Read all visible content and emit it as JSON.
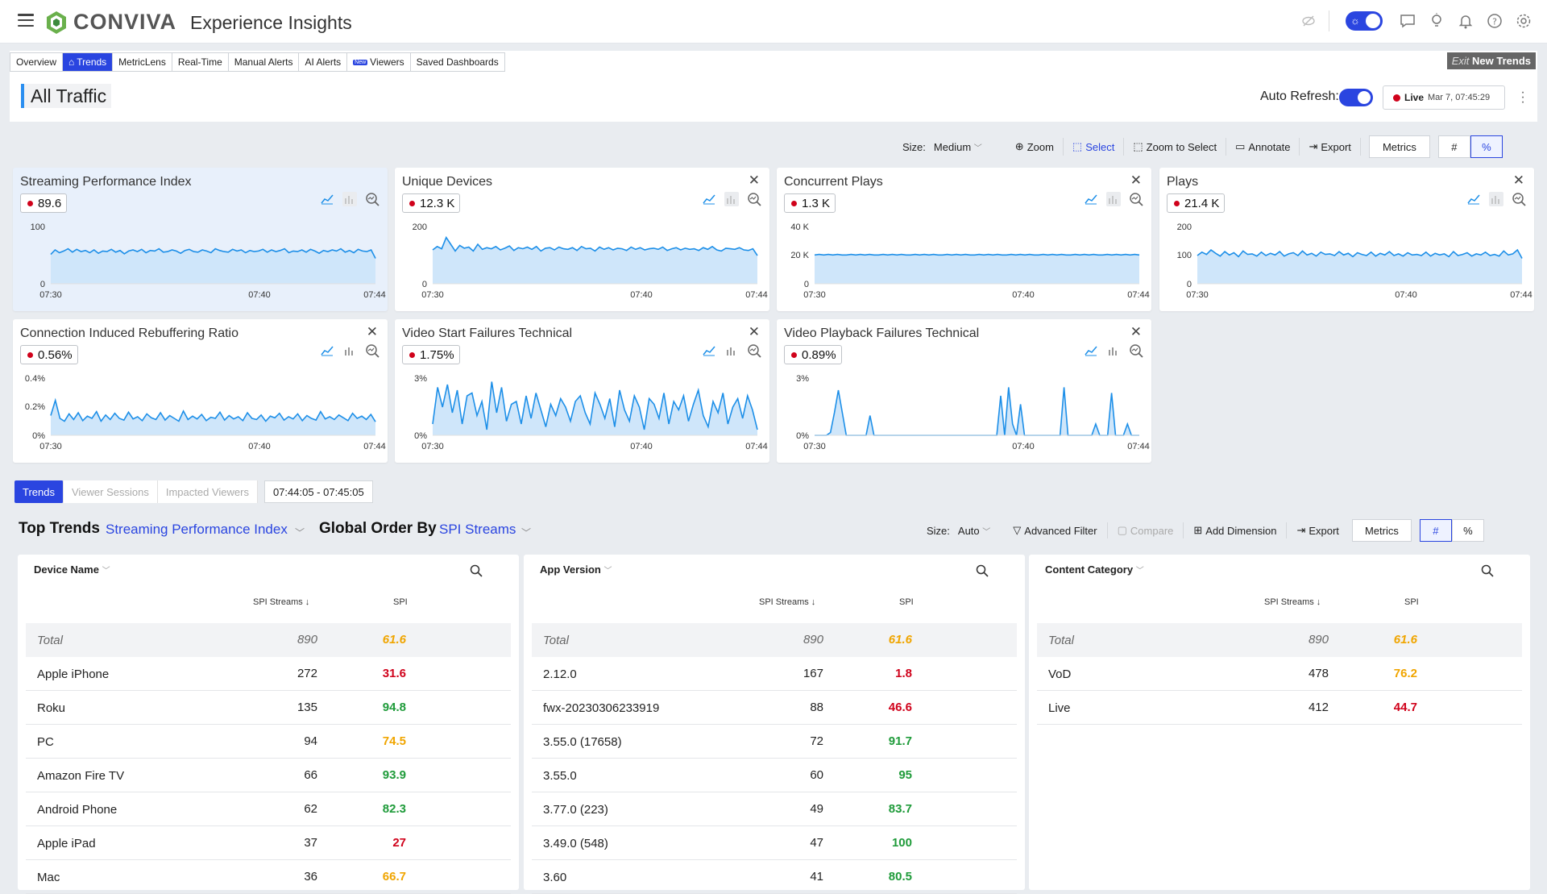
{
  "header": {
    "brand": "CONVIVA",
    "app_title": "Experience Insights"
  },
  "tabs": [
    {
      "label": "Overview",
      "active": false
    },
    {
      "label": "Trends",
      "active": true,
      "icon": "home-icon"
    },
    {
      "label": "MetricLens",
      "active": false
    },
    {
      "label": "Real-Time",
      "active": false
    },
    {
      "label": "Manual Alerts",
      "active": false
    },
    {
      "label": "AI Alerts",
      "active": false
    },
    {
      "label": "Viewers",
      "active": false,
      "badge": "New"
    },
    {
      "label": "Saved Dashboards",
      "active": false
    }
  ],
  "exit": {
    "prefix": "Exit",
    "label": "New Trends"
  },
  "page": {
    "title": "All Traffic",
    "auto_refresh_label": "Auto Refresh:",
    "live_label": "Live",
    "live_time": "Mar 7, 07:45:29"
  },
  "toolbar": {
    "size_label": "Size:",
    "size_value": "Medium",
    "zoom": "Zoom",
    "select": "Select",
    "zoom_to_select": "Zoom to Select",
    "annotate": "Annotate",
    "export": "Export",
    "metrics": "Metrics",
    "hash": "#",
    "pct": "%"
  },
  "cards": [
    {
      "title": "Streaming Performance Index",
      "value": "89.6",
      "y_top": "100",
      "y_mid": "",
      "y_bot": "0",
      "x": [
        "07:30",
        "07:40",
        "07:44"
      ],
      "closable": false,
      "highlight": true,
      "series": [
        52,
        60,
        55,
        58,
        62,
        56,
        61,
        57,
        59,
        55,
        60,
        54,
        58,
        57,
        61,
        56,
        59,
        53,
        58,
        60,
        57,
        61,
        55,
        59,
        58,
        62,
        56,
        57,
        60,
        58,
        54,
        59,
        61,
        57,
        56,
        60,
        58,
        55,
        62,
        59,
        57,
        56,
        61,
        58,
        60,
        55,
        59,
        57,
        58,
        61,
        56,
        60,
        57,
        59,
        62,
        55,
        58,
        57,
        60,
        56,
        61,
        58,
        54,
        59,
        57,
        60,
        58,
        62,
        56,
        59,
        55,
        61,
        58,
        57,
        60,
        45
      ]
    },
    {
      "title": "Unique Devices",
      "value": "12.3 K",
      "y_top": "200",
      "y_mid": "",
      "y_bot": "0",
      "x": [
        "07:30",
        "07:40",
        "07:44"
      ],
      "closable": true,
      "highlight": false,
      "series": [
        60,
        66,
        62,
        82,
        70,
        58,
        68,
        63,
        65,
        58,
        70,
        61,
        64,
        62,
        66,
        60,
        63,
        67,
        59,
        64,
        62,
        65,
        61,
        66,
        58,
        63,
        64,
        60,
        65,
        62,
        61,
        64,
        59,
        66,
        62,
        63,
        58,
        65,
        61,
        64,
        60,
        63,
        62,
        59,
        65,
        61,
        64,
        60,
        62,
        63,
        61,
        65,
        59,
        62,
        64,
        60,
        63,
        61,
        62,
        59,
        64,
        61,
        66,
        60,
        58,
        63,
        62,
        61,
        64,
        60,
        59,
        62,
        50
      ]
    },
    {
      "title": "Concurrent Plays",
      "value": "1.3 K",
      "y_top": "40 K",
      "y_mid": "20 K",
      "y_bot": "0",
      "x": [
        "07:30",
        "07:40",
        "07:44"
      ],
      "closable": true,
      "highlight": false,
      "series": [
        51,
        52,
        51,
        52,
        51,
        52,
        51,
        51,
        52,
        51,
        52,
        51,
        52,
        51,
        51,
        52,
        51,
        52,
        51,
        52,
        51,
        51,
        52,
        51,
        52,
        51,
        52,
        51,
        51,
        52,
        51,
        52,
        51,
        52,
        51,
        51,
        52,
        51,
        52,
        51,
        52,
        51,
        51,
        52,
        51,
        52,
        51,
        52,
        51,
        51,
        52,
        51,
        52,
        51,
        52,
        51,
        51,
        52,
        51,
        52,
        51,
        52,
        51,
        51,
        52,
        51,
        52,
        51,
        52,
        51,
        52,
        51
      ]
    },
    {
      "title": "Plays",
      "value": "21.4 K",
      "y_top": "200",
      "y_mid": "100",
      "y_bot": "0",
      "x": [
        "07:30",
        "07:40",
        "07:44"
      ],
      "closable": true,
      "highlight": false,
      "series": [
        50,
        56,
        52,
        60,
        54,
        49,
        57,
        51,
        55,
        48,
        58,
        52,
        53,
        49,
        56,
        50,
        54,
        51,
        57,
        49,
        53,
        55,
        50,
        58,
        51,
        54,
        49,
        56,
        52,
        53,
        50,
        57,
        51,
        54,
        48,
        55,
        52,
        50,
        56,
        49,
        54,
        51,
        57,
        50,
        53,
        49,
        55,
        51,
        52,
        50,
        56,
        49,
        54,
        51,
        53,
        48,
        57,
        50,
        52,
        55,
        49,
        53,
        51,
        56,
        50,
        52,
        49,
        58,
        51,
        53,
        60,
        45
      ]
    },
    {
      "title": "Connection Induced Rebuffering Ratio",
      "value": "0.56%",
      "y_top": "0.4%",
      "y_mid": "0.2%",
      "y_bot": "0%",
      "x": [
        "07:30",
        "07:40",
        "07:44"
      ],
      "closable": true,
      "highlight": false,
      "series": [
        35,
        62,
        30,
        25,
        38,
        28,
        40,
        26,
        34,
        30,
        42,
        25,
        36,
        28,
        39,
        30,
        27,
        41,
        29,
        33,
        26,
        38,
        31,
        28,
        40,
        27,
        35,
        30,
        25,
        43,
        28,
        34,
        29,
        37,
        26,
        32,
        30,
        41,
        27,
        35,
        29,
        33,
        26,
        40,
        30,
        28,
        36,
        25,
        34,
        31,
        39,
        27,
        33,
        29,
        38,
        26,
        35,
        30,
        27,
        42,
        29,
        33,
        28,
        36,
        31,
        26,
        39,
        30,
        34,
        28,
        37,
        24
      ]
    },
    {
      "title": "Video Start Failures Technical",
      "value": "1.75%",
      "y_top": "3%",
      "y_mid": "",
      "y_bot": "0%",
      "x": [
        "07:30",
        "07:40",
        "07:44"
      ],
      "closable": true,
      "highlight": false,
      "series": [
        20,
        85,
        50,
        90,
        40,
        80,
        20,
        70,
        75,
        35,
        60,
        10,
        95,
        40,
        85,
        25,
        55,
        60,
        20,
        70,
        30,
        75,
        45,
        15,
        55,
        35,
        65,
        50,
        25,
        60,
        70,
        40,
        20,
        75,
        55,
        30,
        65,
        15,
        80,
        45,
        25,
        70,
        50,
        10,
        65,
        55,
        30,
        75,
        20,
        60,
        45,
        70,
        25,
        55,
        80,
        35,
        15,
        60,
        40,
        75,
        20,
        50,
        65,
        30,
        70,
        45,
        10
      ]
    },
    {
      "title": "Video Playback Failures Technical",
      "value": "0.89%",
      "y_top": "3%",
      "y_mid": "",
      "y_bot": "0%",
      "x": [
        "07:30",
        "07:40",
        "07:44"
      ],
      "closable": true,
      "highlight": false,
      "series": [
        0,
        0,
        0,
        0,
        5,
        40,
        80,
        40,
        0,
        0,
        0,
        0,
        0,
        0,
        35,
        0,
        0,
        0,
        0,
        0,
        0,
        0,
        0,
        0,
        0,
        0,
        0,
        0,
        0,
        0,
        0,
        0,
        0,
        0,
        0,
        0,
        0,
        0,
        0,
        0,
        0,
        0,
        0,
        0,
        0,
        0,
        0,
        70,
        0,
        85,
        20,
        0,
        55,
        0,
        0,
        0,
        0,
        0,
        0,
        0,
        0,
        0,
        0,
        85,
        0,
        0,
        0,
        0,
        0,
        0,
        0,
        20,
        0,
        0,
        0,
        75,
        0,
        0,
        0,
        20,
        0,
        0,
        0
      ]
    }
  ],
  "bottom_tabs": {
    "trends": "Trends",
    "viewer_sessions": "Viewer Sessions",
    "impacted_viewers": "Impacted Viewers",
    "time_range": "07:44:05 - 07:45:05"
  },
  "top_trends": {
    "label": "Top Trends",
    "metric": "Streaming Performance Index",
    "order_label": "Global Order By",
    "order_value": "SPI Streams",
    "size_label": "Size:",
    "size_value": "Auto",
    "advanced_filter": "Advanced Filter",
    "compare": "Compare",
    "add_dimension": "Add Dimension",
    "export": "Export",
    "metrics": "Metrics",
    "hash": "#",
    "pct": "%"
  },
  "tables": [
    {
      "dimension": "Device Name",
      "col1": "SPI Streams ↓",
      "col2": "SPI",
      "rows": [
        {
          "name": "Total",
          "streams": "890",
          "spi": "61.6",
          "color": "orange",
          "total": true
        },
        {
          "name": "Apple iPhone",
          "streams": "272",
          "spi": "31.6",
          "color": "red"
        },
        {
          "name": "Roku",
          "streams": "135",
          "spi": "94.8",
          "color": "green"
        },
        {
          "name": "PC",
          "streams": "94",
          "spi": "74.5",
          "color": "orange"
        },
        {
          "name": "Amazon Fire TV",
          "streams": "66",
          "spi": "93.9",
          "color": "green"
        },
        {
          "name": "Android Phone",
          "streams": "62",
          "spi": "82.3",
          "color": "green"
        },
        {
          "name": "Apple iPad",
          "streams": "37",
          "spi": "27",
          "color": "red"
        },
        {
          "name": "Mac",
          "streams": "36",
          "spi": "66.7",
          "color": "orange"
        }
      ]
    },
    {
      "dimension": "App Version",
      "col1": "SPI Streams ↓",
      "col2": "SPI",
      "rows": [
        {
          "name": "Total",
          "streams": "890",
          "spi": "61.6",
          "color": "orange",
          "total": true
        },
        {
          "name": "2.12.0",
          "streams": "167",
          "spi": "1.8",
          "color": "red"
        },
        {
          "name": "fwx-20230306233919",
          "streams": "88",
          "spi": "46.6",
          "color": "red"
        },
        {
          "name": "3.55.0 (17658)",
          "streams": "72",
          "spi": "91.7",
          "color": "green"
        },
        {
          "name": "3.55.0",
          "streams": "60",
          "spi": "95",
          "color": "green"
        },
        {
          "name": "3.77.0 (223)",
          "streams": "49",
          "spi": "83.7",
          "color": "green"
        },
        {
          "name": "3.49.0 (548)",
          "streams": "47",
          "spi": "100",
          "color": "green"
        },
        {
          "name": "3.60",
          "streams": "41",
          "spi": "80.5",
          "color": "green"
        }
      ]
    },
    {
      "dimension": "Content Category",
      "col1": "SPI Streams ↓",
      "col2": "SPI",
      "rows": [
        {
          "name": "Total",
          "streams": "890",
          "spi": "61.6",
          "color": "orange",
          "total": true
        },
        {
          "name": "VoD",
          "streams": "478",
          "spi": "76.2",
          "color": "orange"
        },
        {
          "name": "Live",
          "streams": "412",
          "spi": "44.7",
          "color": "red"
        }
      ]
    }
  ],
  "colors": {
    "accent": "#2a45e0",
    "chart_line": "#1d8fe8",
    "chart_fill": "#cfe6fa",
    "red": "#d0021b",
    "green": "#1f9b3a",
    "orange": "#f0a500"
  }
}
